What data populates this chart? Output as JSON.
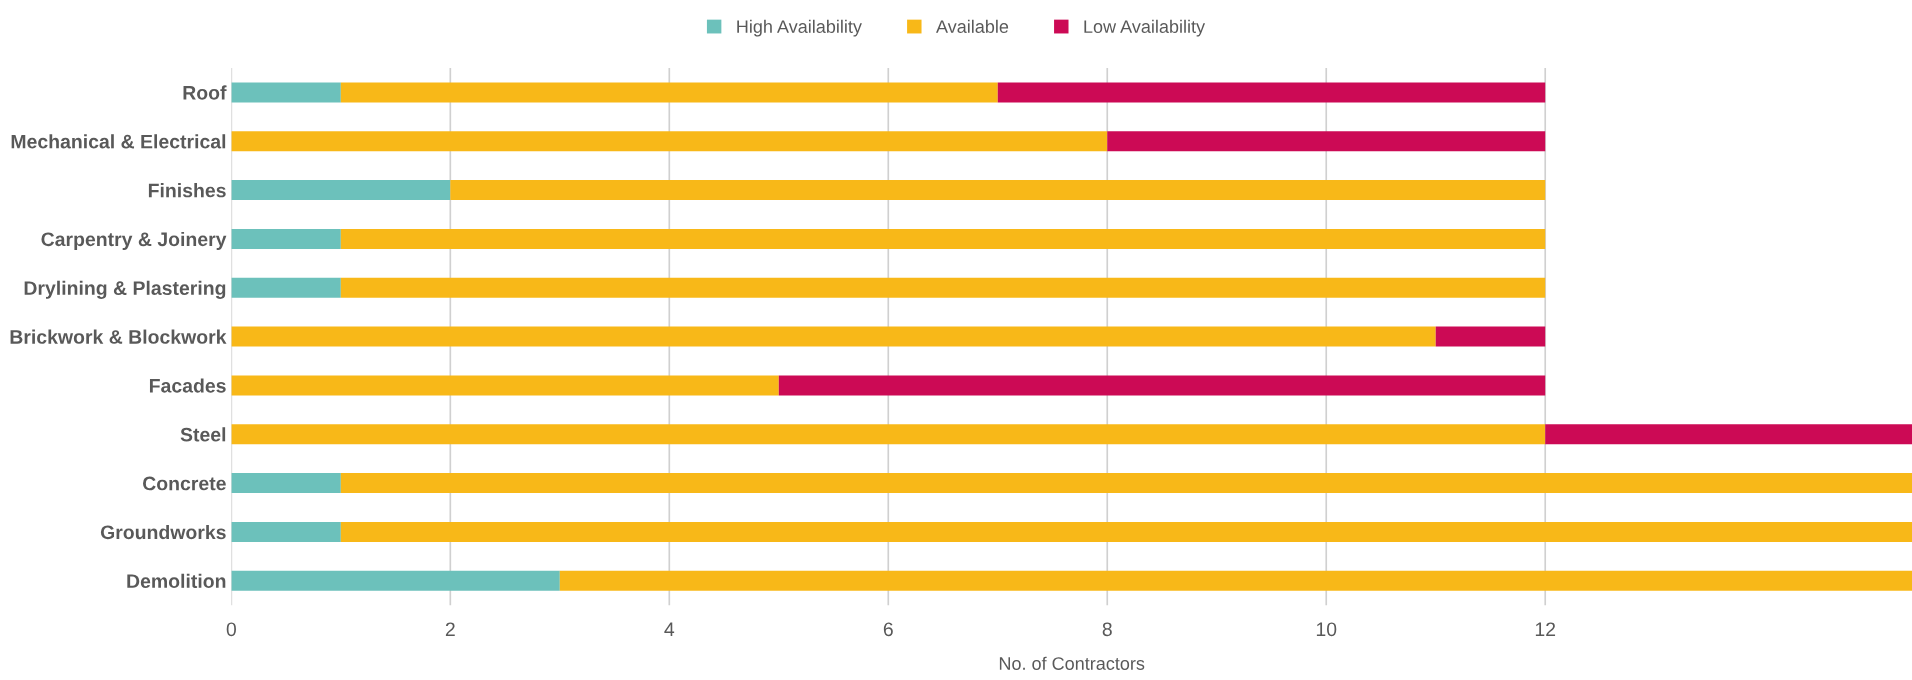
{
  "chart_data": {
    "type": "bar",
    "orientation": "horizontal",
    "stacked": true,
    "xlabel": "No. of Contractors",
    "categories": [
      "Roof",
      "Mechanical & Electrical",
      "Finishes",
      "Carpentry & Joinery",
      "Drylining & Plastering",
      "Brickwork & Blockwork",
      "Facades",
      "Steel",
      "Concrete",
      "Groundworks",
      "Demolition"
    ],
    "series": [
      {
        "name": "High Availability",
        "color": "#6cc1bb",
        "values": [
          1,
          null,
          2,
          1,
          1,
          null,
          null,
          null,
          1,
          1,
          3
        ]
      },
      {
        "name": "Available",
        "color": "#f8b818",
        "values": [
          6,
          8,
          10,
          11,
          11,
          11,
          5,
          12,
          14.35,
          14.35,
          12.35
        ]
      },
      {
        "name": "Low Availability",
        "color": "#cc0a55",
        "values": [
          5,
          4,
          null,
          null,
          null,
          1,
          7,
          3.35,
          null,
          null,
          null
        ]
      }
    ],
    "xlim": [
      0,
      15.35
    ],
    "xticks": [
      0,
      2,
      4,
      6,
      8,
      10,
      12
    ],
    "grid": "x",
    "legend": "top"
  }
}
